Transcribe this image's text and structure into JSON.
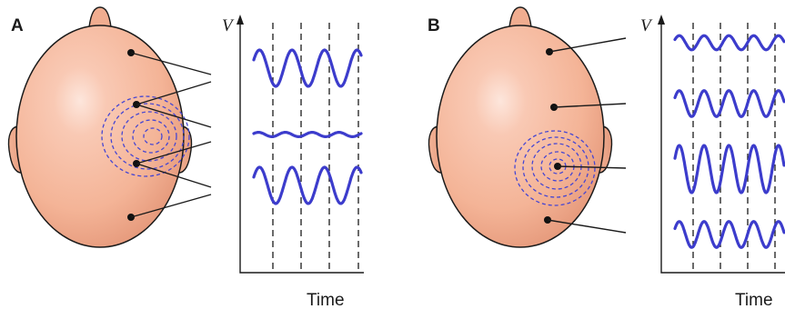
{
  "panels": [
    {
      "letter": "A",
      "v_label": "V",
      "time_label": "Time",
      "traces": [
        {
          "amplitude": 1.0,
          "cycles": 3.3
        },
        {
          "amplitude": 0.12,
          "cycles": 4.0
        },
        {
          "amplitude": 1.0,
          "cycles": 3.3
        }
      ]
    },
    {
      "letter": "B",
      "v_label": "V",
      "time_label": "Time",
      "traces": [
        {
          "amplitude": 0.3,
          "cycles": 4.4
        },
        {
          "amplitude": 0.55,
          "cycles": 4.4
        },
        {
          "amplitude": 1.0,
          "cycles": 4.4
        },
        {
          "amplitude": 0.55,
          "cycles": 4.4
        }
      ]
    }
  ],
  "colors": {
    "skin": "#f6b9a0",
    "wave": "#3c3ccc",
    "field": "#4646d2",
    "outline": "#1a1a1a"
  }
}
